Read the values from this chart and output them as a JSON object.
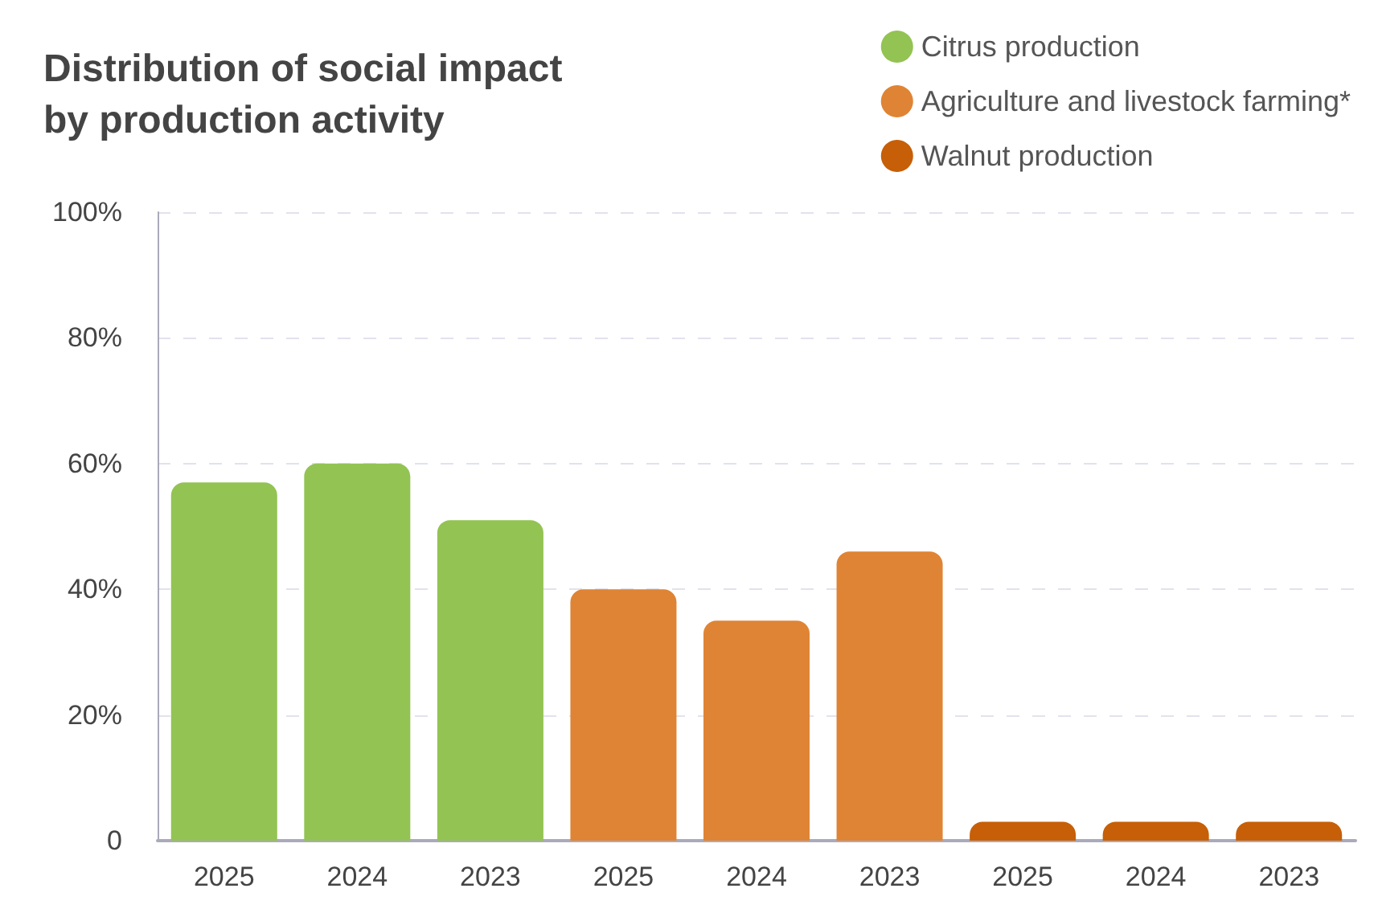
{
  "chart_data": {
    "type": "bar",
    "title": "Distribution of social impact\nby production activity",
    "categories": [
      "2025",
      "2024",
      "2023",
      "2025",
      "2024",
      "2023",
      "2025",
      "2024",
      "2023"
    ],
    "series": [
      {
        "name": "Citrus production",
        "color": "#93c353",
        "values": [
          57,
          60,
          51,
          null,
          null,
          null,
          null,
          null,
          null
        ]
      },
      {
        "name": "Agriculture and livestock farming*",
        "color": "#df8434",
        "values": [
          null,
          null,
          null,
          40,
          35,
          46,
          null,
          null,
          null
        ]
      },
      {
        "name": "Walnut production",
        "color": "#c65f08",
        "values": [
          null,
          null,
          null,
          null,
          null,
          null,
          3,
          3,
          3
        ]
      }
    ],
    "ylim": [
      0,
      100
    ],
    "yticks": [
      0,
      {
        "value": 20,
        "label": "20%"
      },
      {
        "value": 40,
        "label": "40%"
      },
      {
        "value": 60,
        "label": "60%"
      },
      {
        "value": 80,
        "label": "80%"
      },
      {
        "value": 100,
        "label": "100%"
      }
    ],
    "grid": "y",
    "legend": "top right"
  }
}
